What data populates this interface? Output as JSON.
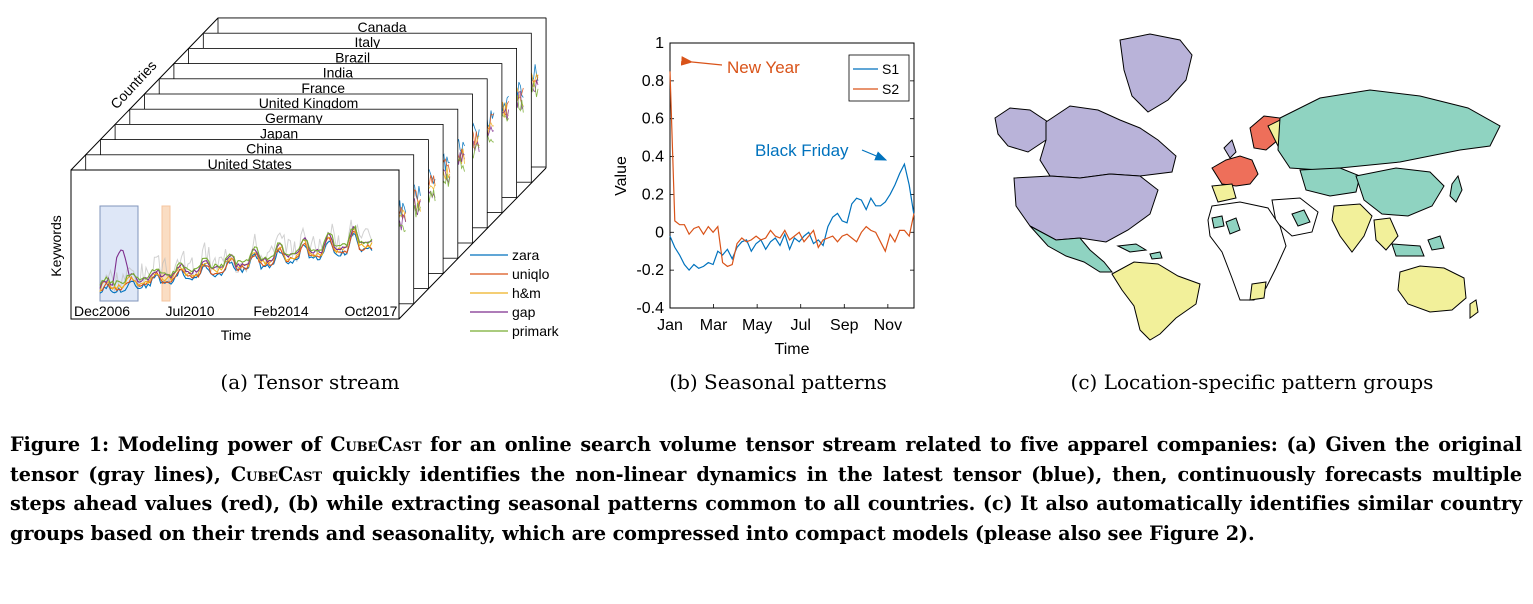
{
  "panel_a": {
    "countries": [
      "Canada",
      "Italy",
      "Brazil",
      "India",
      "France",
      "United Kingdom",
      "Germany",
      "Japan",
      "China",
      "United States"
    ],
    "depth_label": "Countries",
    "y_label": "Keywords",
    "x_label": "Time",
    "x_ticks": [
      "Dec2006",
      "Jul2010",
      "Feb2014",
      "Oct2017"
    ],
    "legend": [
      "zara",
      "uniqlo",
      "h&m",
      "gap",
      "primark"
    ],
    "caption": "(a) Tensor stream"
  },
  "panel_b": {
    "caption": "(b) Seasonal patterns",
    "annotation_new_year": "New Year",
    "annotation_black_friday": "Black Friday"
  },
  "panel_c": {
    "caption": "(c) Location-specific pattern groups",
    "group_colors": [
      "#b9b3d9",
      "#8fd3c1",
      "#f2f09a",
      "#ee6f5a",
      "#ffffff"
    ]
  },
  "caption": {
    "label": "Figure 1:",
    "part1": "Modeling power of",
    "name": "CubeCast",
    "part2": "for an online search volume tensor stream related to five apparel companies: (a) Given the original tensor (gray lines),",
    "part3": "quickly identifies the non-linear dynamics in the latest tensor (blue), then, continuously forecasts multiple steps ahead values (red), (b) while extracting seasonal patterns common to all countries. (c) It also automatically identifies similar country groups based on their trends and seasonality, which are compressed into compact models (please also see Figure 2)."
  },
  "chart_data": {
    "type": "line",
    "x": [
      1,
      2,
      3,
      4,
      5,
      6,
      7,
      8,
      9,
      10,
      11,
      12,
      13,
      14,
      15,
      16,
      17,
      18,
      19,
      20,
      21,
      22,
      23,
      24,
      25,
      26,
      27,
      28,
      29,
      30,
      31,
      32,
      33,
      34,
      35,
      36,
      37,
      38,
      39,
      40,
      41,
      42,
      43,
      44,
      45,
      46,
      47,
      48,
      49,
      50,
      51,
      52
    ],
    "xlabel": "Time",
    "ylabel": "Value",
    "xticks": [
      "Jan",
      "Mar",
      "May",
      "Jul",
      "Sep",
      "Nov"
    ],
    "ylim": [
      -0.4,
      1
    ],
    "yticks": [
      -0.4,
      -0.2,
      0,
      0.2,
      0.4,
      0.6,
      0.8,
      1
    ],
    "legend_position": "top-right",
    "series": [
      {
        "name": "S1",
        "color": "#0072bd",
        "values": [
          -0.02,
          -0.08,
          -0.12,
          -0.17,
          -0.2,
          -0.17,
          -0.19,
          -0.18,
          -0.16,
          -0.17,
          -0.1,
          -0.12,
          -0.09,
          -0.14,
          -0.08,
          -0.05,
          -0.04,
          -0.1,
          -0.06,
          -0.04,
          -0.09,
          -0.05,
          -0.03,
          -0.07,
          -0.01,
          -0.09,
          -0.03,
          -0.05,
          -0.02,
          0,
          -0.06,
          -0.04,
          -0.07,
          0.03,
          0.08,
          0.1,
          0.06,
          0.05,
          0.15,
          0.18,
          0.17,
          0.12,
          0.18,
          0.14,
          0.14,
          0.16,
          0.2,
          0.25,
          0.31,
          0.36,
          0.25,
          0.09
        ]
      },
      {
        "name": "S2",
        "color": "#d95319",
        "values": [
          0.85,
          0.06,
          0.04,
          0.04,
          -0.01,
          0.02,
          0.03,
          -0.01,
          0.03,
          0,
          0.03,
          -0.16,
          -0.18,
          -0.17,
          -0.06,
          -0.03,
          -0.05,
          -0.04,
          -0.02,
          -0.04,
          -0.03,
          0.01,
          -0.02,
          -0.03,
          0.01,
          -0.04,
          -0.02,
          0,
          -0.05,
          -0.02,
          0.01,
          -0.08,
          -0.04,
          -0.03,
          -0.02,
          -0.05,
          -0.02,
          -0.01,
          -0.03,
          -0.05,
          0,
          0.03,
          0.01,
          0,
          -0.05,
          -0.1,
          -0.01,
          -0.05,
          0.01,
          0.01,
          -0.02,
          0.1
        ]
      }
    ]
  }
}
